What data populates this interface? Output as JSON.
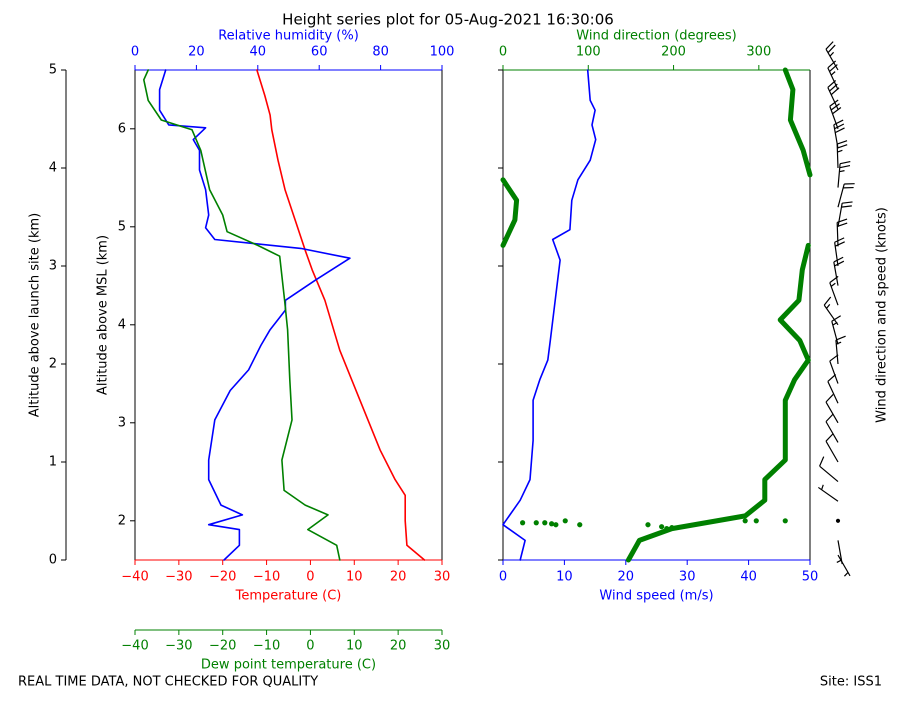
{
  "chart_data": {
    "type": "line",
    "title": "Height series plot for 05-Aug-2021 16:30:06",
    "footer_left": "REAL TIME DATA, NOT CHECKED FOR QUALITY",
    "footer_right": "Site: ISS1",
    "panels": [
      {
        "x_axes": [
          {
            "label": "Temperature (C)",
            "color": "#ff0000",
            "position": "bottom",
            "xlim": [
              -40,
              30
            ],
            "xticks": [
              {
                "value": -40,
                "label": "−40"
              },
              {
                "value": -30,
                "label": "−30"
              },
              {
                "value": -20,
                "label": "−20"
              },
              {
                "value": -10,
                "label": "−10"
              },
              0,
              10,
              20,
              30
            ]
          },
          {
            "label": "Relative humidity (%)",
            "color": "#0000ff",
            "position": "top",
            "xlim": [
              0,
              100
            ],
            "xticks": [
              0,
              20,
              40,
              60,
              80,
              100
            ]
          },
          {
            "label": "Dew point temperature (C)",
            "color": "#008000",
            "position": "offset-bottom",
            "xlim": [
              -40,
              30
            ],
            "xticks": [
              {
                "value": -40,
                "label": "−40"
              },
              {
                "value": -30,
                "label": "−30"
              },
              {
                "value": -20,
                "label": "−20"
              },
              {
                "value": -10,
                "label": "−10"
              },
              0,
              10,
              20,
              30
            ]
          }
        ],
        "y_axes": [
          {
            "label": "Altitude above launch site (km)",
            "position": "outer",
            "ylim": [
              0,
              5
            ],
            "yticks": [
              0,
              1,
              2,
              3,
              4,
              5
            ]
          },
          {
            "label": "Altitude above MSL (km)",
            "position": "inner",
            "ylim": [
              1.6,
              6.6
            ],
            "yticks": [
              2,
              3,
              4,
              5,
              6
            ]
          }
        ],
        "series": [
          {
            "axis": 0,
            "color": "#ff0000",
            "linewidth": 1.6,
            "altitude": [
              0,
              0.15,
              0.4,
              0.66,
              0.82,
              1.12,
              1.63,
              2.14,
              2.65,
              2.96,
              3.16,
              3.47,
              3.78,
              4.08,
              4.39,
              4.54,
              4.74,
              5.0
            ],
            "values": [
              26,
              22,
              21.6,
              21.6,
              19.3,
              15.9,
              11.3,
              6.7,
              3.3,
              0.4,
              -1.2,
              -3.5,
              -5.8,
              -7.4,
              -8.8,
              -9.2,
              -10.4,
              -12.2
            ]
          },
          {
            "axis": 1,
            "color": "#0000ff",
            "linewidth": 1.6,
            "altitude": [
              0,
              0.15,
              0.31,
              0.36,
              0.46,
              0.56,
              0.82,
              1.02,
              1.43,
              1.73,
              1.94,
              2.19,
              2.35,
              2.55,
              2.65,
              2.86,
              3.08,
              3.18,
              3.27,
              3.39,
              3.52,
              3.78,
              3.98,
              4.18,
              4.29,
              4.41,
              4.44,
              4.59,
              4.8,
              5.0
            ],
            "values": [
              29,
              34,
              34,
              24,
              35,
              28,
              24,
              24,
              26,
              31,
              37,
              41,
              44,
              49,
              49,
              59,
              70,
              54,
              26,
              23,
              24,
              23,
              21,
              21,
              19,
              23,
              11,
              8,
              8,
              10
            ]
          },
          {
            "axis": 2,
            "color": "#008000",
            "linewidth": 1.6,
            "altitude": [
              0,
              0.15,
              0.31,
              0.46,
              0.56,
              0.71,
              1.02,
              1.43,
              1.84,
              2.35,
              2.65,
              3.1,
              3.21,
              3.35,
              3.52,
              3.78,
              4.18,
              4.39,
              4.49,
              4.69,
              4.9,
              5.0
            ],
            "values": [
              6.7,
              6,
              -0.6,
              4,
              -1.2,
              -6,
              -6.5,
              -4.2,
              -4.7,
              -5.2,
              -5.9,
              -7,
              -12,
              -19,
              -20,
              -23,
              -25,
              -27,
              -34,
              -37,
              -38,
              -37
            ]
          }
        ]
      },
      {
        "x_axes": [
          {
            "label": "Wind speed (m/s)",
            "color": "#0000ff",
            "position": "bottom",
            "xlim": [
              0,
              50
            ],
            "xticks": [
              0,
              10,
              20,
              30,
              40,
              50
            ]
          },
          {
            "label": "Wind direction (degrees)",
            "color": "#008000",
            "position": "top",
            "xlim": [
              0,
              360
            ],
            "xticks": [
              0,
              100,
              200,
              300
            ]
          }
        ],
        "series": [
          {
            "axis": 0,
            "color": "#0000ff",
            "linewidth": 1.6,
            "altitude": [
              0,
              0.2,
              0.36,
              0.61,
              0.82,
              1.22,
              1.63,
              1.84,
              2.04,
              2.24,
              2.65,
              3.06,
              3.27,
              3.37,
              3.67,
              3.88,
              4.08,
              4.29,
              4.44,
              4.59,
              4.69,
              5.0
            ],
            "values": [
              2.8,
              3.6,
              0,
              2.8,
              4.4,
              4.9,
              4.9,
              6,
              7.3,
              7.7,
              8.5,
              9.3,
              8.1,
              10.9,
              11.2,
              12.2,
              14.2,
              15.1,
              14.5,
              15,
              14.2,
              13.8
            ]
          },
          {
            "axis": 1,
            "color": "#008000",
            "linewidth": 5,
            "altitude": [
              0,
              0.2,
              0.32,
              0.45,
              0.61,
              0.82,
              1.02,
              1.63,
              1.84,
              2.04,
              2.24,
              2.45,
              2.65,
              2.96,
              3.21,
              null,
              3.21,
              3.47,
              3.67,
              3.88,
              null,
              3.93,
              4.18,
              4.49,
              4.8,
              5.0
            ],
            "values": [
              147,
              160,
              198,
              284,
              307,
              307,
              331,
              331,
              342,
              358,
              348,
              325,
              347,
              351,
              358,
              null,
              0,
              14,
              16,
              0,
              null,
              360,
              352,
              337,
              340,
              331
            ]
          },
          {
            "axis": 1,
            "color": "#008000",
            "style": "dots",
            "altitude": [
              0.38,
              0.38,
              0.38,
              0.37,
              0.36,
              0.4,
              0.36,
              0.36,
              0.34,
              0.32,
              0.33,
              0.4,
              0.4,
              0.4
            ],
            "values": [
              23,
              39,
              49,
              57,
              62,
              73,
              90,
              170,
              186,
              192,
              198,
              284,
              297,
              331
            ]
          }
        ],
        "barbs": {
          "label": "Wind direction and speed (knots)",
          "color": "#000000",
          "altitude": [
            0.05,
            0.2,
            0.4,
            0.6,
            0.8,
            1.0,
            1.2,
            1.4,
            1.6,
            1.8,
            2.0,
            2.2,
            2.4,
            2.6,
            2.8,
            3.0,
            3.2,
            3.4,
            3.6,
            3.8,
            4.0,
            4.2,
            4.4,
            4.6,
            4.8,
            5.0
          ],
          "direction": [
            150,
            170,
            280,
            305,
            310,
            330,
            330,
            330,
            335,
            340,
            355,
            345,
            325,
            340,
            350,
            352,
            358,
            10,
            15,
            5,
            358,
            350,
            340,
            335,
            335,
            330
          ],
          "speed": [
            5,
            3,
            1,
            6,
            9,
            10,
            10,
            10,
            11,
            12,
            14,
            15,
            16,
            17,
            18,
            18,
            19,
            21,
            22,
            23,
            26,
            29,
            28,
            28,
            27,
            27
          ]
        }
      }
    ]
  }
}
